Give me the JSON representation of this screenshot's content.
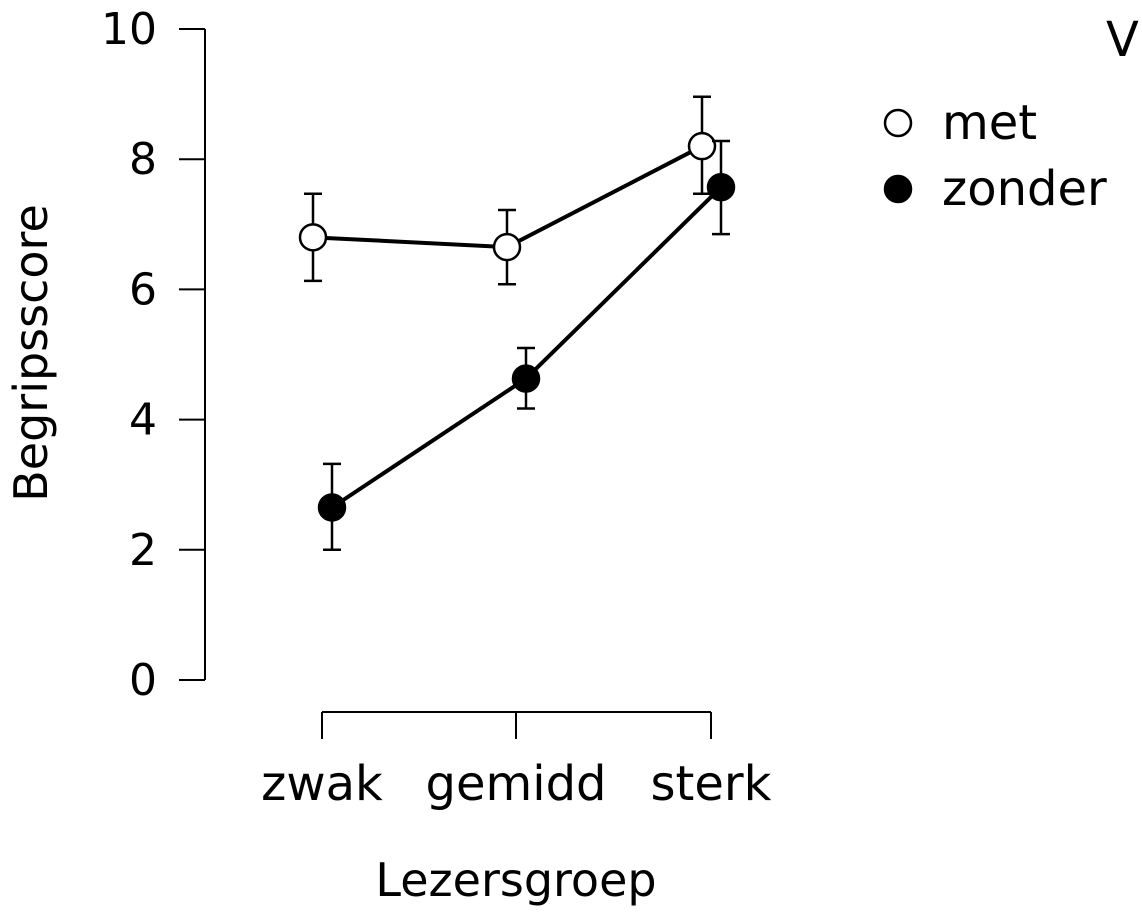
{
  "chart_data": {
    "type": "line",
    "xlabel": "Lezersgroep",
    "ylabel": "Begripsscore",
    "ylim": [
      0,
      10
    ],
    "yticks": [
      0,
      2,
      4,
      6,
      8,
      10
    ],
    "categories": [
      "zwak",
      "gemidd",
      "sterk"
    ],
    "legend": {
      "title": "V",
      "placement": "top-right"
    },
    "grid": false,
    "series": [
      {
        "name": "met",
        "marker": "open-circle",
        "color": "#ffffff",
        "values": [
          6.8,
          6.65,
          8.2
        ],
        "error_low": [
          6.13,
          6.08,
          7.47
        ],
        "error_high": [
          7.47,
          7.22,
          8.96
        ]
      },
      {
        "name": "zonder",
        "marker": "filled-circle",
        "color": "#000000",
        "values": [
          2.65,
          4.63,
          7.57
        ],
        "error_low": [
          2.0,
          4.17,
          6.85
        ],
        "error_high": [
          3.32,
          5.1,
          8.28
        ]
      }
    ]
  }
}
